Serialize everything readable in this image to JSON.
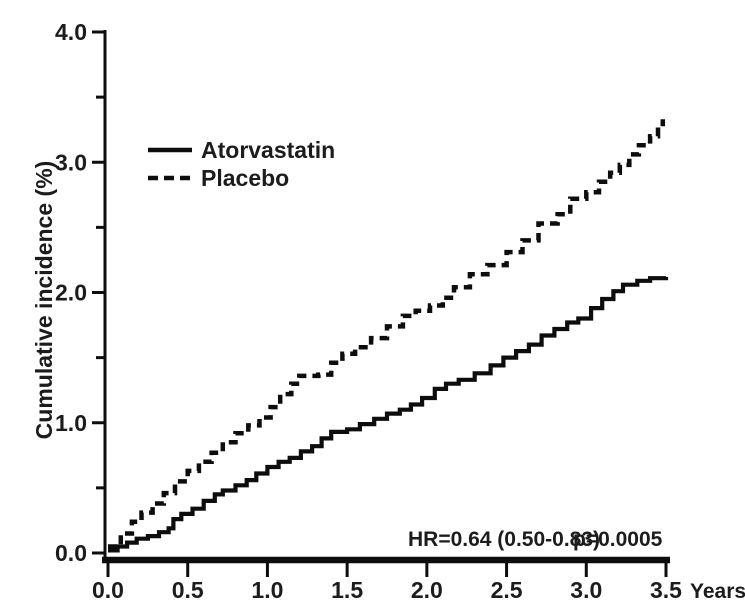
{
  "figure": {
    "y_axis": {
      "label": "Cumulative incidence (%)",
      "tick_labels": [
        "0.0",
        "1.0",
        "2.0",
        "3.0",
        "4.0"
      ]
    },
    "x_axis": {
      "tick_labels": [
        "0.0",
        "0.5",
        "1.0",
        "1.5",
        "2.0",
        "2.5",
        "3.0",
        "3.5"
      ],
      "unit_label": "Years"
    },
    "legend": [
      {
        "label": "Atorvastatin",
        "style": "solid"
      },
      {
        "label": "Placebo",
        "style": "dashed"
      }
    ],
    "annotation": {
      "hr_text": "HR=0.64 (0.50-0.83)",
      "p_text": "p=0.0005"
    }
  },
  "colors": {
    "line": "#0d0d0d",
    "text": "#1c1c1c",
    "background": "#ffffff"
  },
  "chart_data": {
    "type": "line",
    "subtype": "cumulative-incidence-step-curves",
    "title": "",
    "xlabel": "Years",
    "ylabel": "Cumulative incidence (%)",
    "xlim": [
      0,
      3.5
    ],
    "ylim": [
      0,
      4.0
    ],
    "x_ticks": [
      0.0,
      0.5,
      1.0,
      1.5,
      2.0,
      2.5,
      3.0,
      3.5
    ],
    "y_ticks": [
      0.0,
      1.0,
      2.0,
      3.0,
      4.0
    ],
    "y_minor_ticks": [
      0.5,
      1.5,
      2.5,
      3.5
    ],
    "grid": false,
    "step_interpolation": "post",
    "legend_position": "upper-left-inside",
    "annotation": "HR=0.64 (0.50-0.83)  p=0.0005",
    "series": [
      {
        "name": "Atorvastatin",
        "line_style": "solid",
        "color": "#0d0d0d",
        "points": [
          [
            0.0,
            0.02
          ],
          [
            0.06,
            0.05
          ],
          [
            0.12,
            0.08
          ],
          [
            0.18,
            0.11
          ],
          [
            0.25,
            0.13
          ],
          [
            0.32,
            0.16
          ],
          [
            0.38,
            0.19
          ],
          [
            0.41,
            0.26
          ],
          [
            0.46,
            0.3
          ],
          [
            0.53,
            0.34
          ],
          [
            0.6,
            0.4
          ],
          [
            0.67,
            0.45
          ],
          [
            0.72,
            0.48
          ],
          [
            0.8,
            0.52
          ],
          [
            0.87,
            0.56
          ],
          [
            0.93,
            0.61
          ],
          [
            1.0,
            0.66
          ],
          [
            1.07,
            0.7
          ],
          [
            1.14,
            0.73
          ],
          [
            1.21,
            0.78
          ],
          [
            1.28,
            0.82
          ],
          [
            1.34,
            0.88
          ],
          [
            1.4,
            0.93
          ],
          [
            1.5,
            0.95
          ],
          [
            1.58,
            0.99
          ],
          [
            1.67,
            1.03
          ],
          [
            1.75,
            1.07
          ],
          [
            1.83,
            1.1
          ],
          [
            1.9,
            1.14
          ],
          [
            1.97,
            1.19
          ],
          [
            2.05,
            1.26
          ],
          [
            2.12,
            1.3
          ],
          [
            2.2,
            1.33
          ],
          [
            2.3,
            1.38
          ],
          [
            2.4,
            1.44
          ],
          [
            2.48,
            1.5
          ],
          [
            2.56,
            1.55
          ],
          [
            2.64,
            1.6
          ],
          [
            2.72,
            1.67
          ],
          [
            2.8,
            1.72
          ],
          [
            2.88,
            1.77
          ],
          [
            2.95,
            1.8
          ],
          [
            3.03,
            1.88
          ],
          [
            3.1,
            1.95
          ],
          [
            3.17,
            2.01
          ],
          [
            3.23,
            2.06
          ],
          [
            3.32,
            2.09
          ],
          [
            3.4,
            2.11
          ],
          [
            3.5,
            2.12
          ]
        ]
      },
      {
        "name": "Placebo",
        "line_style": "dashed",
        "color": "#0d0d0d",
        "points": [
          [
            0.0,
            0.05
          ],
          [
            0.08,
            0.15
          ],
          [
            0.15,
            0.24
          ],
          [
            0.21,
            0.31
          ],
          [
            0.28,
            0.38
          ],
          [
            0.35,
            0.46
          ],
          [
            0.42,
            0.55
          ],
          [
            0.5,
            0.63
          ],
          [
            0.57,
            0.7
          ],
          [
            0.65,
            0.77
          ],
          [
            0.72,
            0.85
          ],
          [
            0.8,
            0.92
          ],
          [
            0.88,
            0.98
          ],
          [
            0.95,
            1.04
          ],
          [
            1.02,
            1.12
          ],
          [
            1.08,
            1.22
          ],
          [
            1.15,
            1.3
          ],
          [
            1.2,
            1.36
          ],
          [
            1.32,
            1.37
          ],
          [
            1.4,
            1.46
          ],
          [
            1.47,
            1.53
          ],
          [
            1.55,
            1.58
          ],
          [
            1.65,
            1.65
          ],
          [
            1.75,
            1.74
          ],
          [
            1.85,
            1.82
          ],
          [
            1.93,
            1.86
          ],
          [
            2.02,
            1.9
          ],
          [
            2.1,
            1.96
          ],
          [
            2.17,
            2.04
          ],
          [
            2.27,
            2.14
          ],
          [
            2.38,
            2.21
          ],
          [
            2.5,
            2.31
          ],
          [
            2.6,
            2.4
          ],
          [
            2.7,
            2.53
          ],
          [
            2.82,
            2.6
          ],
          [
            2.9,
            2.72
          ],
          [
            3.0,
            2.77
          ],
          [
            3.08,
            2.85
          ],
          [
            3.15,
            2.92
          ],
          [
            3.21,
            2.98
          ],
          [
            3.27,
            3.06
          ],
          [
            3.33,
            3.13
          ],
          [
            3.4,
            3.2
          ],
          [
            3.45,
            3.27
          ],
          [
            3.48,
            3.33
          ]
        ]
      }
    ]
  }
}
